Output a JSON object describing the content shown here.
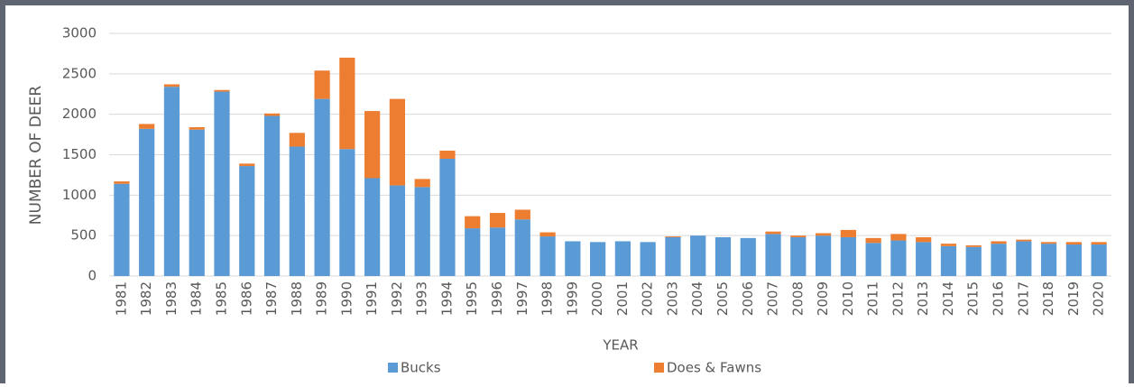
{
  "chart_data": {
    "type": "stacked_bar",
    "x_label": "YEAR",
    "y_label": "NUMBER OF DEER",
    "categories": [
      "1981",
      "1982",
      "1983",
      "1984",
      "1985",
      "1986",
      "1987",
      "1988",
      "1989",
      "1990",
      "1991",
      "1992",
      "1993",
      "1994",
      "1995",
      "1996",
      "1997",
      "1998",
      "1999",
      "2000",
      "2001",
      "2002",
      "2003",
      "2004",
      "2005",
      "2006",
      "2007",
      "2008",
      "2009",
      "2010",
      "2011",
      "2012",
      "2013",
      "2014",
      "2015",
      "2016",
      "2017",
      "2018",
      "2019",
      "2020"
    ],
    "series": [
      {
        "name": "Bucks",
        "color": "#5b9bd5",
        "values": [
          1140,
          1820,
          2340,
          1810,
          2280,
          1360,
          1980,
          1600,
          2190,
          1570,
          1210,
          1120,
          1100,
          1450,
          590,
          600,
          700,
          490,
          430,
          420,
          430,
          420,
          480,
          500,
          480,
          470,
          520,
          480,
          500,
          480,
          410,
          440,
          420,
          370,
          360,
          400,
          430,
          400,
          390,
          390
        ]
      },
      {
        "name": "Does & Fawns",
        "color": "#ed7d31",
        "values": [
          30,
          60,
          30,
          30,
          20,
          30,
          30,
          170,
          350,
          1130,
          830,
          1070,
          100,
          100,
          150,
          180,
          120,
          50,
          0,
          0,
          0,
          0,
          10,
          0,
          0,
          0,
          30,
          20,
          30,
          90,
          60,
          80,
          60,
          30,
          20,
          30,
          20,
          20,
          30,
          30
        ]
      }
    ],
    "ylim": [
      0,
      3000
    ],
    "yticks": [
      0,
      500,
      1000,
      1500,
      2000,
      2500,
      3000
    ],
    "grid": true,
    "legend": "bottom"
  }
}
